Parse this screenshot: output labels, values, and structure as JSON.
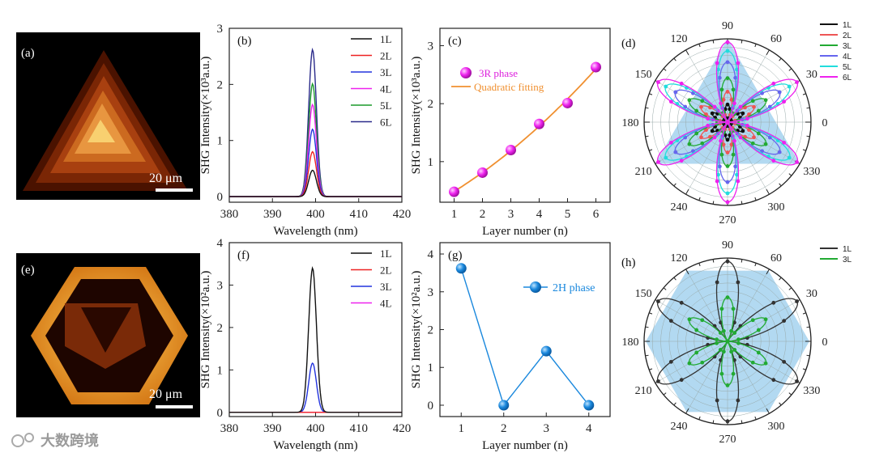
{
  "watermark": "大数跨境",
  "images": {
    "a": {
      "label": "(a)",
      "scale": "20 μm"
    },
    "e": {
      "label": "(e)",
      "scale": "20 μm"
    }
  },
  "chart_data": [
    {
      "id": "b",
      "type": "line",
      "panel_label": "(b)",
      "xlabel": "Wavelength (nm)",
      "ylabel": "SHG Intensity(×10³a.u.)",
      "xlim": [
        380,
        420
      ],
      "ylim": [
        -0.1,
        3
      ],
      "xticks": [
        380,
        390,
        400,
        410,
        420
      ],
      "yticks": [
        0,
        1,
        2,
        3
      ],
      "peak_center": 399.3,
      "peak_sigma": 0.9,
      "series": [
        {
          "name": "1L",
          "peak": 0.47,
          "color": "#111111"
        },
        {
          "name": "2L",
          "peak": 0.8,
          "color": "#ee2222"
        },
        {
          "name": "3L",
          "peak": 1.2,
          "color": "#2233dd"
        },
        {
          "name": "4L",
          "peak": 1.64,
          "color": "#ee22ee"
        },
        {
          "name": "5L",
          "peak": 2.01,
          "color": "#1a9a2a"
        },
        {
          "name": "6L",
          "peak": 2.62,
          "color": "#2a2a8a"
        }
      ]
    },
    {
      "id": "c",
      "type": "scatter",
      "panel_label": "(c)",
      "xlabel": "Layer number (n)",
      "ylabel": "SHG Intensity(×10³a.u.)",
      "xlim": [
        0.5,
        6.5
      ],
      "ylim": [
        0.3,
        3.3
      ],
      "xticks": [
        1,
        2,
        3,
        4,
        5,
        6
      ],
      "yticks": [
        1,
        2,
        3
      ],
      "x": [
        1,
        2,
        3,
        4,
        5,
        6
      ],
      "y": [
        0.48,
        0.81,
        1.2,
        1.65,
        2.01,
        2.63
      ],
      "fit": "quadratic",
      "legend": [
        "3R phase",
        "Quadratic fitting"
      ],
      "marker_color": "#ee22ee",
      "fit_color": "#f09030"
    },
    {
      "id": "d",
      "type": "polar",
      "panel_label": "(d)",
      "angle_labels": [
        "90",
        "60",
        "30",
        "0",
        "330",
        "300",
        "270",
        "240",
        "210",
        "180",
        "150",
        "120"
      ],
      "fill_color": "#9fd0ee",
      "series": [
        {
          "name": "1L",
          "amp": 0.22,
          "color": "#111111"
        },
        {
          "name": "2L",
          "amp": 0.38,
          "color": "#ee5555"
        },
        {
          "name": "3L",
          "amp": 0.55,
          "color": "#22aa33"
        },
        {
          "name": "4L",
          "amp": 0.75,
          "color": "#6666ee"
        },
        {
          "name": "5L",
          "amp": 0.89,
          "color": "#22dddd"
        },
        {
          "name": "6L",
          "amp": 1.0,
          "color": "#ee22ee"
        }
      ]
    },
    {
      "id": "f",
      "type": "line",
      "panel_label": "(f)",
      "xlabel": "Wavelength (nm)",
      "ylabel": "SHG Intensity(×10²a.u.)",
      "xlim": [
        380,
        420
      ],
      "ylim": [
        -0.1,
        4
      ],
      "xticks": [
        380,
        390,
        400,
        410,
        420
      ],
      "yticks": [
        0,
        1,
        2,
        3,
        4
      ],
      "peak_center": 399.3,
      "peak_sigma": 0.9,
      "series": [
        {
          "name": "1L",
          "peak": 3.4,
          "color": "#111111"
        },
        {
          "name": "2L",
          "peak": 0.0,
          "color": "#ee2222"
        },
        {
          "name": "3L",
          "peak": 1.16,
          "color": "#2233dd"
        },
        {
          "name": "4L",
          "peak": 0.0,
          "color": "#ee22ee"
        }
      ]
    },
    {
      "id": "g",
      "type": "line",
      "panel_label": "(g)",
      "xlabel": "Layer number (n)",
      "ylabel": "SHG Intensity(×10²a.u.)",
      "xlim": [
        0.5,
        4.5
      ],
      "ylim": [
        -0.3,
        4.3
      ],
      "xticks": [
        1,
        2,
        3,
        4
      ],
      "yticks": [
        0,
        1,
        2,
        3,
        4
      ],
      "x": [
        1,
        2,
        3,
        4
      ],
      "y": [
        3.62,
        0.0,
        1.43,
        0.0
      ],
      "legend": [
        "2H phase"
      ],
      "color": "#1a88dd"
    },
    {
      "id": "h",
      "type": "polar",
      "panel_label": "(h)",
      "angle_labels": [
        "90",
        "60",
        "30",
        "0",
        "330",
        "300",
        "270",
        "240",
        "210",
        "180",
        "150",
        "120"
      ],
      "fill_color": "#9fd0ee",
      "series": [
        {
          "name": "1L",
          "amp": 1.0,
          "color": "#333333"
        },
        {
          "name": "3L",
          "amp": 0.55,
          "color": "#22aa33"
        }
      ]
    }
  ]
}
